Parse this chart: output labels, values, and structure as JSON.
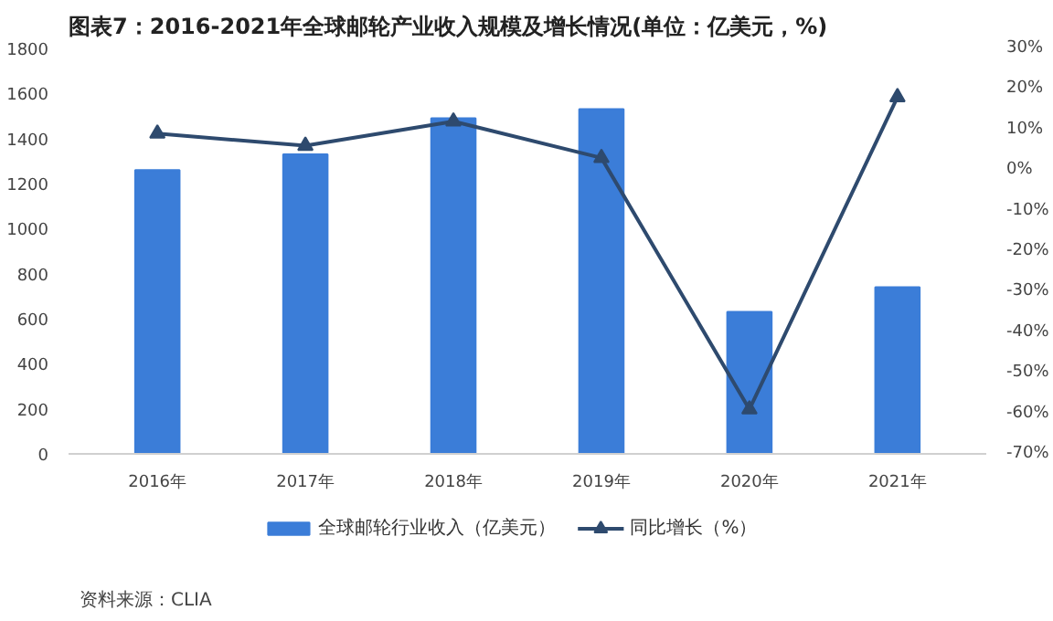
{
  "chart_data": {
    "type": "bar",
    "title": "图表7：2016-2021年全球邮轮产业收入规模及增长情况(单位：亿美元，%)",
    "categories": [
      "2016年",
      "2017年",
      "2018年",
      "2019年",
      "2020年",
      "2021年"
    ],
    "series": [
      {
        "name": "全球邮轮行业收入（亿美元）",
        "color": "#3b7dd8",
        "values": [
          1260,
          1330,
          1490,
          1530,
          630,
          740
        ]
      },
      {
        "name": "同比增长（%）",
        "type": "line",
        "axis": "y2",
        "color": "#2e4a6e",
        "marker": "triangle",
        "values": [
          9,
          6,
          12,
          3,
          -59,
          18
        ]
      }
    ],
    "ylim": [
      0,
      1800
    ],
    "yticks": [
      0,
      200,
      400,
      600,
      800,
      1000,
      1200,
      1400,
      1600,
      1800
    ],
    "y2lim": [
      -70,
      30
    ],
    "y2ticks": [
      {
        "value": -70,
        "label": "-70%"
      },
      {
        "value": -60,
        "label": "-60%"
      },
      {
        "value": -50,
        "label": "-50%"
      },
      {
        "value": -40,
        "label": "-40%"
      },
      {
        "value": -30,
        "label": "-30%"
      },
      {
        "value": -20,
        "label": "-20%"
      },
      {
        "value": -10,
        "label": "-10%"
      },
      {
        "value": 0,
        "label": "0%"
      },
      {
        "value": 10,
        "label": "10%"
      },
      {
        "value": 20,
        "label": "20%"
      },
      {
        "value": 30,
        "label": "30%"
      }
    ],
    "grid": false,
    "legend": "bottom",
    "annotations": [
      "资料来源：CLIA"
    ]
  }
}
